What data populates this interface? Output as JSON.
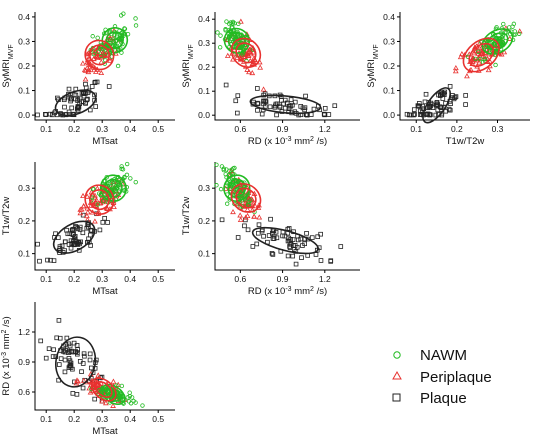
{
  "legend": [
    {
      "label": "NAWM",
      "color": "#22bb22",
      "marker": "circle"
    },
    {
      "label": "Periplaque",
      "color": "#e8312f",
      "marker": "triangle"
    },
    {
      "label": "Plaque",
      "color": "#222222",
      "marker": "square"
    }
  ],
  "chart_data": [
    {
      "type": "scatter",
      "xlabel": "MTsat",
      "ylabel": "SyMRI_MVF",
      "xticks": [
        "0.1",
        "0.2",
        "0.3",
        "0.4",
        "0.5"
      ],
      "yticks": [
        "0.0",
        "0.1",
        "0.2",
        "0.3",
        "0.4"
      ],
      "xlim": [
        0.06,
        0.56
      ],
      "ylim": [
        -0.02,
        0.42
      ],
      "groups": [
        {
          "name": "NAWM",
          "cx": 0.34,
          "cy": 0.3,
          "sx": 0.035,
          "sy": 0.04,
          "n": 80,
          "ellipses": [
            {
              "cx": 0.345,
              "cy": 0.305,
              "rx": 0.045,
              "ry": 0.05,
              "angle": 30
            },
            {
              "cx": 0.345,
              "cy": 0.305,
              "rx": 0.03,
              "ry": 0.033,
              "angle": 30
            }
          ]
        },
        {
          "name": "Periplaque",
          "cx": 0.29,
          "cy": 0.24,
          "sx": 0.035,
          "sy": 0.04,
          "n": 75,
          "ellipses": [
            {
              "cx": 0.29,
              "cy": 0.245,
              "rx": 0.05,
              "ry": 0.06,
              "angle": 35
            },
            {
              "cx": 0.29,
              "cy": 0.245,
              "rx": 0.034,
              "ry": 0.04,
              "angle": 35
            }
          ]
        },
        {
          "name": "Plaque",
          "cx": 0.2,
          "cy": 0.05,
          "sx": 0.05,
          "sy": 0.04,
          "n": 70,
          "floor": 0.0,
          "ellipses": [
            {
              "cx": 0.205,
              "cy": 0.05,
              "rx": 0.075,
              "ry": 0.045,
              "angle": 20
            }
          ]
        }
      ]
    },
    {
      "type": "scatter",
      "xlabel": "RD (x 10^-3 mm^2 /s)",
      "ylabel": "SyMRI_MVF",
      "xticks": [
        "0.6",
        "0.9",
        "1.2"
      ],
      "yticks": [
        "0.0",
        "0.1",
        "0.2",
        "0.3",
        "0.4"
      ],
      "xlim": [
        0.42,
        1.45
      ],
      "ylim": [
        -0.02,
        0.43
      ],
      "groups": [
        {
          "name": "NAWM",
          "cx": 0.57,
          "cy": 0.31,
          "sx": 0.05,
          "sy": 0.04,
          "n": 80,
          "ellipses": [
            {
              "cx": 0.575,
              "cy": 0.31,
              "rx": 0.09,
              "ry": 0.05,
              "angle": -40
            },
            {
              "cx": 0.575,
              "cy": 0.31,
              "rx": 0.06,
              "ry": 0.034,
              "angle": -40
            }
          ]
        },
        {
          "name": "Periplaque",
          "cx": 0.63,
          "cy": 0.26,
          "sx": 0.06,
          "sy": 0.045,
          "n": 75,
          "ellipses": [
            {
              "cx": 0.64,
              "cy": 0.26,
              "rx": 0.11,
              "ry": 0.055,
              "angle": -45
            },
            {
              "cx": 0.64,
              "cy": 0.26,
              "rx": 0.075,
              "ry": 0.037,
              "angle": -45
            }
          ]
        },
        {
          "name": "Plaque",
          "cx": 0.92,
          "cy": 0.04,
          "sx": 0.16,
          "sy": 0.03,
          "n": 70,
          "floor": 0.0,
          "ellipses": [
            {
              "cx": 0.92,
              "cy": 0.045,
              "rx": 0.25,
              "ry": 0.035,
              "angle": -5
            }
          ]
        }
      ]
    },
    {
      "type": "scatter",
      "xlabel": "T1w/T2w",
      "ylabel": "SyMRI_MVF",
      "xticks": [
        "0.1",
        "0.2",
        "0.3"
      ],
      "yticks": [
        "0.0",
        "0.1",
        "0.2",
        "0.3",
        "0.4"
      ],
      "xlim": [
        0.06,
        0.38
      ],
      "ylim": [
        -0.02,
        0.42
      ],
      "groups": [
        {
          "name": "NAWM",
          "cx": 0.3,
          "cy": 0.3,
          "sx": 0.025,
          "sy": 0.04,
          "n": 80,
          "ellipses": [
            {
              "cx": 0.3,
              "cy": 0.3,
              "rx": 0.04,
              "ry": 0.045,
              "angle": 30
            },
            {
              "cx": 0.3,
              "cy": 0.3,
              "rx": 0.027,
              "ry": 0.03,
              "angle": 30
            }
          ]
        },
        {
          "name": "Periplaque",
          "cx": 0.26,
          "cy": 0.24,
          "sx": 0.03,
          "sy": 0.04,
          "n": 75,
          "ellipses": [
            {
              "cx": 0.26,
              "cy": 0.245,
              "rx": 0.05,
              "ry": 0.055,
              "angle": 40
            },
            {
              "cx": 0.26,
              "cy": 0.245,
              "rx": 0.034,
              "ry": 0.037,
              "angle": 40
            }
          ]
        },
        {
          "name": "Plaque",
          "cx": 0.15,
          "cy": 0.04,
          "sx": 0.03,
          "sy": 0.035,
          "n": 70,
          "floor": 0.0,
          "ellipses": [
            {
              "cx": 0.15,
              "cy": 0.04,
              "rx": 0.05,
              "ry": 0.035,
              "angle": 55
            }
          ]
        }
      ]
    },
    {
      "type": "scatter",
      "xlabel": "MTsat",
      "ylabel": "T1w/T2w",
      "xticks": [
        "0.1",
        "0.2",
        "0.3",
        "0.4",
        "0.5"
      ],
      "yticks": [
        "0.1",
        "0.2",
        "0.3"
      ],
      "xlim": [
        0.06,
        0.56
      ],
      "ylim": [
        0.05,
        0.38
      ],
      "groups": [
        {
          "name": "NAWM",
          "cx": 0.34,
          "cy": 0.3,
          "sx": 0.035,
          "sy": 0.03,
          "n": 80,
          "ellipses": [
            {
              "cx": 0.34,
              "cy": 0.3,
              "rx": 0.045,
              "ry": 0.04,
              "angle": 30
            },
            {
              "cx": 0.34,
              "cy": 0.3,
              "rx": 0.03,
              "ry": 0.027,
              "angle": 30
            }
          ]
        },
        {
          "name": "Periplaque",
          "cx": 0.29,
          "cy": 0.26,
          "sx": 0.035,
          "sy": 0.03,
          "n": 75,
          "ellipses": [
            {
              "cx": 0.29,
              "cy": 0.265,
              "rx": 0.05,
              "ry": 0.045,
              "angle": 35
            },
            {
              "cx": 0.29,
              "cy": 0.265,
              "rx": 0.034,
              "ry": 0.03,
              "angle": 35
            }
          ]
        },
        {
          "name": "Plaque",
          "cx": 0.2,
          "cy": 0.15,
          "sx": 0.05,
          "sy": 0.03,
          "n": 70,
          "ellipses": [
            {
              "cx": 0.2,
              "cy": 0.15,
              "rx": 0.08,
              "ry": 0.04,
              "angle": 30
            }
          ]
        }
      ]
    },
    {
      "type": "scatter",
      "xlabel": "RD (x 10^-3 mm^2 /s)",
      "ylabel": "T1w/T2w",
      "xticks": [
        "0.6",
        "0.9",
        "1.2"
      ],
      "yticks": [
        "0.1",
        "0.2",
        "0.3"
      ],
      "xlim": [
        0.42,
        1.45
      ],
      "ylim": [
        0.05,
        0.38
      ],
      "groups": [
        {
          "name": "NAWM",
          "cx": 0.57,
          "cy": 0.3,
          "sx": 0.05,
          "sy": 0.03,
          "n": 80,
          "ellipses": [
            {
              "cx": 0.575,
              "cy": 0.3,
              "rx": 0.09,
              "ry": 0.04,
              "angle": -35
            },
            {
              "cx": 0.575,
              "cy": 0.3,
              "rx": 0.06,
              "ry": 0.027,
              "angle": -35
            }
          ]
        },
        {
          "name": "Periplaque",
          "cx": 0.63,
          "cy": 0.27,
          "sx": 0.06,
          "sy": 0.03,
          "n": 75,
          "ellipses": [
            {
              "cx": 0.64,
              "cy": 0.27,
              "rx": 0.11,
              "ry": 0.04,
              "angle": -40
            },
            {
              "cx": 0.64,
              "cy": 0.27,
              "rx": 0.075,
              "ry": 0.027,
              "angle": -40
            }
          ]
        },
        {
          "name": "Plaque",
          "cx": 0.92,
          "cy": 0.14,
          "sx": 0.15,
          "sy": 0.03,
          "n": 70,
          "ellipses": [
            {
              "cx": 0.92,
              "cy": 0.14,
              "rx": 0.24,
              "ry": 0.03,
              "angle": -15
            }
          ]
        }
      ]
    },
    {
      "type": "scatter",
      "xlabel": "MTsat",
      "ylabel": "RD (x 10^-3 mm^2 /s)",
      "xticks": [
        "0.1",
        "0.2",
        "0.3",
        "0.4",
        "0.5"
      ],
      "yticks": [
        "0.6",
        "0.9",
        "1.2"
      ],
      "xlim": [
        0.06,
        0.56
      ],
      "ylim": [
        0.42,
        1.5
      ],
      "groups": [
        {
          "name": "NAWM",
          "cx": 0.34,
          "cy": 0.57,
          "sx": 0.035,
          "sy": 0.05,
          "n": 80,
          "ellipses": [
            {
              "cx": 0.34,
              "cy": 0.575,
              "rx": 0.045,
              "ry": 0.08,
              "angle": -35
            },
            {
              "cx": 0.34,
              "cy": 0.575,
              "rx": 0.03,
              "ry": 0.054,
              "angle": -35
            }
          ]
        },
        {
          "name": "Periplaque",
          "cx": 0.3,
          "cy": 0.62,
          "sx": 0.035,
          "sy": 0.06,
          "n": 75,
          "ellipses": [
            {
              "cx": 0.305,
              "cy": 0.625,
              "rx": 0.05,
              "ry": 0.09,
              "angle": -40
            },
            {
              "cx": 0.305,
              "cy": 0.625,
              "rx": 0.034,
              "ry": 0.06,
              "angle": -40
            }
          ]
        },
        {
          "name": "Plaque",
          "cx": 0.2,
          "cy": 0.9,
          "sx": 0.05,
          "sy": 0.17,
          "n": 70,
          "ellipses": [
            {
              "cx": 0.205,
              "cy": 0.9,
              "rx": 0.07,
              "ry": 0.25,
              "angle": -10
            }
          ]
        }
      ]
    }
  ]
}
